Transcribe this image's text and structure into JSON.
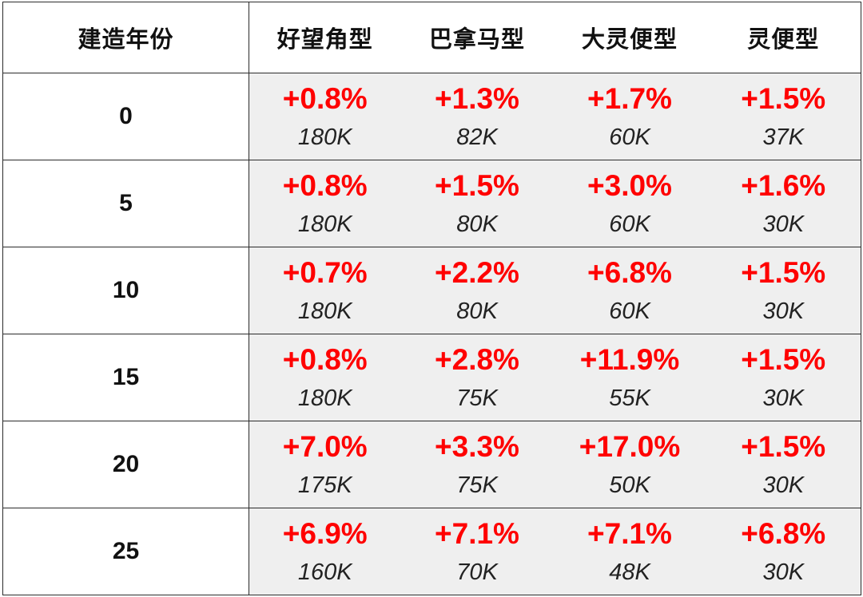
{
  "colors": {
    "pct": "#ff0000",
    "cell_bg": "#efefef",
    "border": "#2b2b2b"
  },
  "table": {
    "headers": [
      "建造年份",
      "好望角型",
      "巴拿马型",
      "大灵便型",
      "灵便型"
    ],
    "rows": [
      {
        "year": "0",
        "cells": [
          {
            "pct": "+0.8%",
            "val": "180K"
          },
          {
            "pct": "+1.3%",
            "val": "82K"
          },
          {
            "pct": "+1.7%",
            "val": "60K"
          },
          {
            "pct": "+1.5%",
            "val": "37K"
          }
        ]
      },
      {
        "year": "5",
        "cells": [
          {
            "pct": "+0.8%",
            "val": "180K"
          },
          {
            "pct": "+1.5%",
            "val": "80K"
          },
          {
            "pct": "+3.0%",
            "val": "60K"
          },
          {
            "pct": "+1.6%",
            "val": "30K"
          }
        ]
      },
      {
        "year": "10",
        "cells": [
          {
            "pct": "+0.7%",
            "val": "180K"
          },
          {
            "pct": "+2.2%",
            "val": "80K"
          },
          {
            "pct": "+6.8%",
            "val": "60K"
          },
          {
            "pct": "+1.5%",
            "val": "30K"
          }
        ]
      },
      {
        "year": "15",
        "cells": [
          {
            "pct": "+0.8%",
            "val": "180K"
          },
          {
            "pct": "+2.8%",
            "val": "75K"
          },
          {
            "pct": "+11.9%",
            "val": "55K"
          },
          {
            "pct": "+1.5%",
            "val": "30K"
          }
        ]
      },
      {
        "year": "20",
        "cells": [
          {
            "pct": "+7.0%",
            "val": "175K"
          },
          {
            "pct": "+3.3%",
            "val": "75K"
          },
          {
            "pct": "+17.0%",
            "val": "50K"
          },
          {
            "pct": "+1.5%",
            "val": "30K"
          }
        ]
      },
      {
        "year": "25",
        "cells": [
          {
            "pct": "+6.9%",
            "val": "160K"
          },
          {
            "pct": "+7.1%",
            "val": "70K"
          },
          {
            "pct": "+7.1%",
            "val": "48K"
          },
          {
            "pct": "+6.8%",
            "val": "30K"
          }
        ]
      }
    ]
  }
}
